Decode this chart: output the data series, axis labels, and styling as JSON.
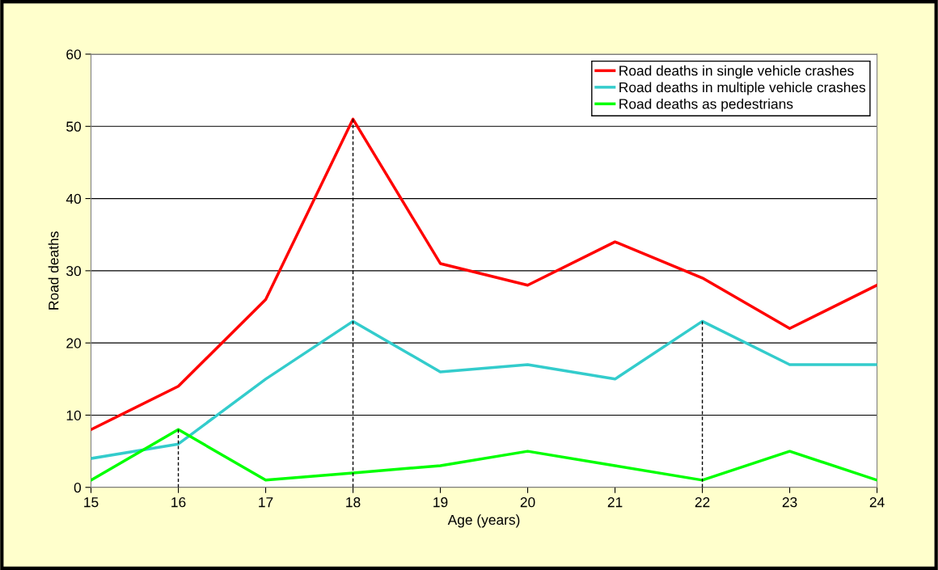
{
  "chart_data": {
    "type": "line",
    "xlabel": "Age (years)",
    "ylabel": "Road deaths",
    "x": [
      15,
      16,
      17,
      18,
      19,
      20,
      21,
      22,
      23,
      24
    ],
    "series": [
      {
        "name": "Road deaths in single vehicle crashes",
        "color": "#ff0000",
        "values": [
          8,
          14,
          26,
          51,
          31,
          28,
          34,
          29,
          22,
          28
        ]
      },
      {
        "name": "Road deaths in multiple vehicle crashes",
        "color": "#33cccc",
        "values": [
          4,
          6,
          15,
          23,
          16,
          17,
          15,
          23,
          17,
          17
        ]
      },
      {
        "name": "Road deaths as pedestrians",
        "color": "#00ff00",
        "values": [
          1,
          8,
          1,
          2,
          3,
          5,
          3,
          1,
          5,
          1
        ]
      },
      {
        "color": "#000000",
        "line_style": "dashed",
        "x": [
          16,
          16
        ],
        "values": [
          0,
          8
        ]
      },
      {
        "color": "#000000",
        "line_style": "dashed",
        "x": [
          18,
          18
        ],
        "values": [
          0,
          51
        ]
      },
      {
        "color": "#000000",
        "line_style": "dashed",
        "x": [
          22,
          22
        ],
        "values": [
          0,
          23
        ]
      }
    ],
    "xlim": [
      15,
      24
    ],
    "xticks": [
      15,
      16,
      17,
      18,
      19,
      20,
      21,
      22,
      23,
      24
    ],
    "ylim": [
      0,
      60
    ],
    "yticks": [
      0,
      10,
      20,
      30,
      40,
      50,
      60
    ],
    "grid": "y",
    "legend": "top right",
    "line_style": "solid",
    "marker": "none"
  }
}
